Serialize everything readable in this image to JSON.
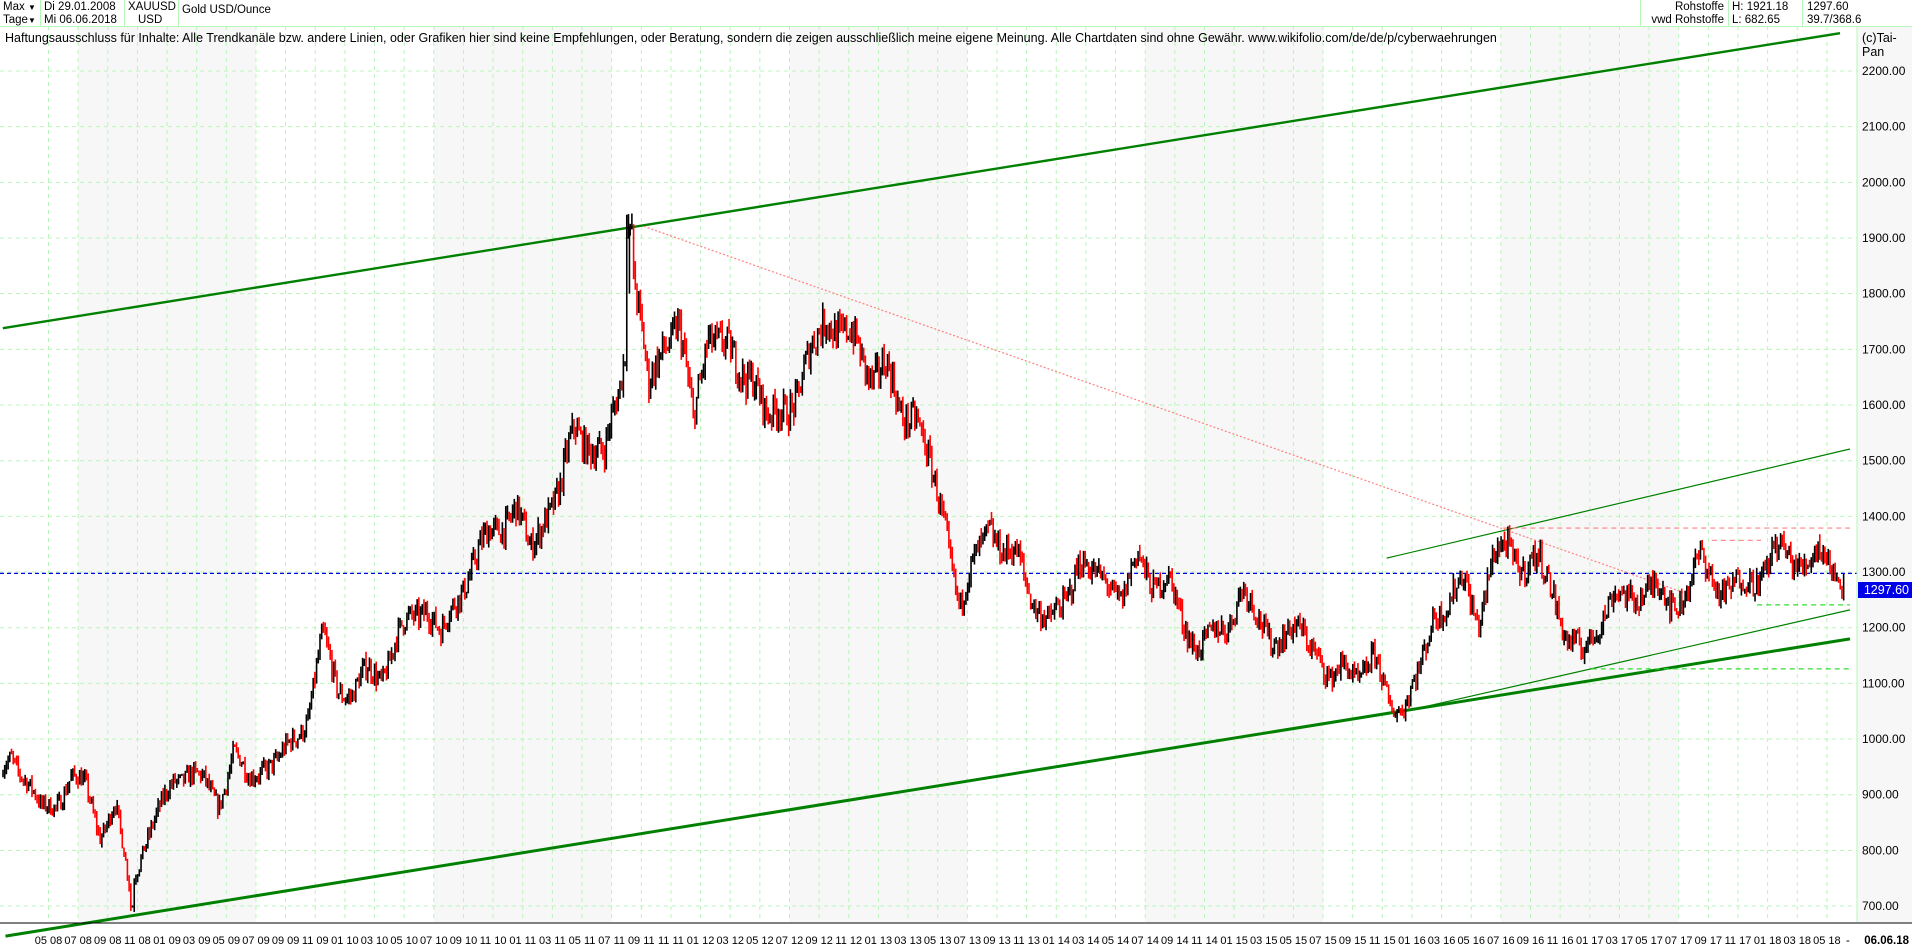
{
  "header": {
    "period_select": "Max",
    "interval_select": "Tage",
    "date_from": "Di 29.01.2008",
    "date_to": "Mi 06.06.2018",
    "symbol": "XAUUSD",
    "currency": "USD",
    "instrument_name": "Gold USD/Ounce",
    "category": "Rohstoffe",
    "source": "vwd Rohstoffe",
    "high": "H: 1921.18",
    "low": "L: 682.65",
    "last": "1297.60",
    "range_info": "39.7/368.6"
  },
  "disclaimer": "Haftungsausschluss für Inhalte: Alle Trendkanäle bzw. andere Linien, oder Grafiken hier sind keine Empfehlungen, oder Beratung, sondern die zeigen ausschließlich meine eigene Meinung. Alle Chartdaten sind ohne Gewähr.  www.wikifolio.com/de/de/p/cyberwaehrungen",
  "copyright": "(c)Tai-Pan",
  "colors": {
    "up": "#000000",
    "down": "#ff0000",
    "grid": "#b8f5b8",
    "trend": "#008000",
    "last_line": "#0000e8",
    "resistance": "#ff8080",
    "support": "#33dd33"
  },
  "chart_data": {
    "type": "ohlc",
    "title": "Gold USD/Ounce",
    "ylim": [
      640,
      2300
    ],
    "y_ticks": [
      "700.00",
      "800.00",
      "900.00",
      "1000.00",
      "1100.00",
      "1200.00",
      "1300.00",
      "1400.00",
      "1500.00",
      "1600.00",
      "1700.00",
      "1800.00",
      "1900.00",
      "2000.00",
      "2100.00",
      "2200.00"
    ],
    "last_price": 1297.6,
    "last_price_label": "1297.60",
    "x_start": "2008-01-29",
    "x_end": "2018-06-06",
    "x_end_label": "06.06.18",
    "x_dash": "-",
    "x_ticks": [
      "05 08",
      "07 08",
      "09 08",
      "11 08",
      "01 09",
      "03 09",
      "05 09",
      "07 09",
      "09 09",
      "11 09",
      "01 10",
      "03 10",
      "05 10",
      "07 10",
      "09 10",
      "11 10",
      "01 11",
      "03 11",
      "05 11",
      "07 11",
      "09 11",
      "11 11",
      "01 12",
      "03 12",
      "05 12",
      "07 12",
      "09 12",
      "11 12",
      "01 13",
      "03 13",
      "05 13",
      "07 13",
      "09 13",
      "11 13",
      "01 14",
      "03 14",
      "05 14",
      "07 14",
      "09 14",
      "11 14",
      "01 15",
      "03 15",
      "05 15",
      "07 15",
      "09 15",
      "11 15",
      "01 16",
      "03 16",
      "05 16",
      "07 16",
      "09 16",
      "11 16",
      "01 17",
      "03 17",
      "05 17",
      "07 17",
      "09 17",
      "11 17",
      "01 18",
      "03 18",
      "05 18"
    ],
    "monthly_close": {
      "2008": [
        920,
        970,
        930,
        870,
        885,
        930,
        915,
        830,
        880,
        730,
        815,
        870
      ],
      "2009": [
        930,
        940,
        920,
        885,
        975,
        925,
        955,
        955,
        1000,
        1040,
        1180,
        1095
      ],
      "2010": [
        1080,
        1120,
        1115,
        1180,
        1215,
        1245,
        1180,
        1250,
        1310,
        1355,
        1385,
        1420
      ],
      "2011": [
        1330,
        1410,
        1440,
        1560,
        1535,
        1500,
        1630,
        1840,
        1620,
        1720,
        1745,
        1565
      ],
      "2012": [
        1740,
        1700,
        1665,
        1665,
        1560,
        1600,
        1615,
        1690,
        1775,
        1720,
        1710,
        1660
      ],
      "2013": [
        1665,
        1580,
        1595,
        1475,
        1390,
        1235,
        1315,
        1395,
        1325,
        1325,
        1250,
        1200
      ],
      "2014": [
        1245,
        1325,
        1285,
        1290,
        1250,
        1325,
        1285,
        1285,
        1210,
        1170,
        1180,
        1200
      ],
      "2015": [
        1280,
        1210,
        1185,
        1185,
        1190,
        1170,
        1095,
        1135,
        1115,
        1140,
        1065,
        1060
      ],
      "2016": [
        1115,
        1235,
        1235,
        1290,
        1215,
        1320,
        1350,
        1310,
        1315,
        1275,
        1175,
        1150
      ],
      "2017": [
        1210,
        1250,
        1250,
        1270,
        1270,
        1240,
        1270,
        1320,
        1280,
        1270,
        1275,
        1300
      ],
      "2018": [
        1340,
        1320,
        1325,
        1330,
        1300,
        1297.6
      ]
    },
    "high": 1921.18,
    "low": 682.65,
    "lines": [
      {
        "kind": "trend",
        "weight": "medium",
        "from": [
          "2008-01-29",
          1738
        ],
        "to": [
          "2018-05-28",
          2268
        ],
        "arrow": true
      },
      {
        "kind": "trend",
        "weight": "thick",
        "from": [
          "2008-02-04",
          646
        ],
        "to": [
          "2018-06-18",
          1180
        ]
      },
      {
        "kind": "trend",
        "weight": "thin",
        "from": [
          "2015-12-17",
          1050
        ],
        "to": [
          "2018-06-18",
          1232
        ]
      },
      {
        "kind": "trend",
        "weight": "thin",
        "from": [
          "2015-11-10",
          1325
        ],
        "to": [
          "2018-06-18",
          1521
        ]
      },
      {
        "kind": "resistance",
        "style": "dotted",
        "from": [
          "2011-09-06",
          1921
        ],
        "to": [
          "2017-07-25",
          1259
        ]
      },
      {
        "kind": "resistance",
        "style": "dashed",
        "from": [
          "2016-07-06",
          1379
        ],
        "to": [
          "2018-06-18",
          1379
        ]
      },
      {
        "kind": "resistance",
        "style": "dashed",
        "from": [
          "2017-09-08",
          1357
        ],
        "to": [
          "2017-12-18",
          1357
        ]
      },
      {
        "kind": "support",
        "style": "dashed",
        "from": [
          "2017-12-10",
          1241
        ],
        "to": [
          "2018-06-18",
          1241
        ]
      },
      {
        "kind": "support",
        "style": "dashed",
        "from": [
          "2017-01-05",
          1126
        ],
        "to": [
          "2018-06-18",
          1126
        ]
      }
    ]
  }
}
